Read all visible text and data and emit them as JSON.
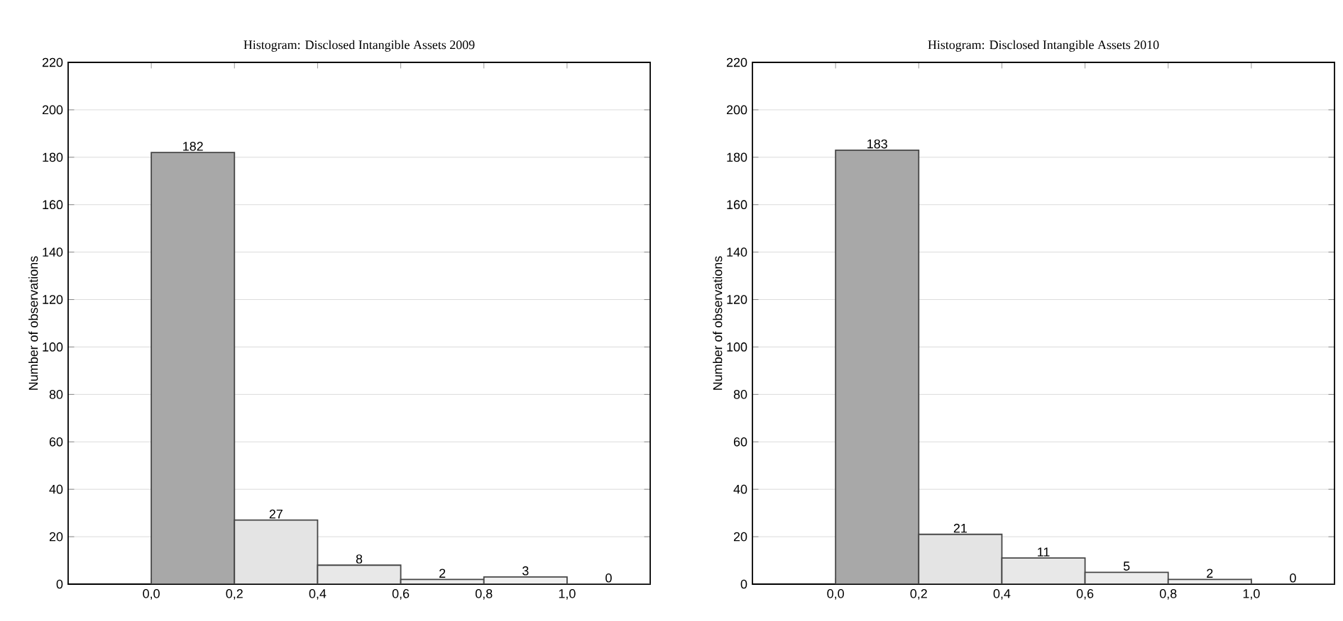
{
  "chart_data": [
    {
      "type": "histogram",
      "title": "Histogram: Disclosed Intangible Assets  2009",
      "ylabel": "Number of observations",
      "bins": [
        0,
        0.2,
        0.4,
        0.6,
        0.8,
        1.0,
        1.2
      ],
      "values": [
        182,
        27,
        8,
        2,
        3,
        0
      ],
      "colors": [
        "#a8a8a8",
        "#e4e4e4",
        "#e8e8e8",
        "#ececec",
        "#f0f0f0",
        "#f0f0f0"
      ],
      "data_labels": true,
      "grid": "y",
      "xlim": [
        -0.2,
        1.2
      ],
      "ylim": [
        0,
        220
      ],
      "xticks": [
        {
          "value": 0,
          "label": "0,0"
        },
        {
          "value": 0.2,
          "label": "0,2"
        },
        {
          "value": 0.4,
          "label": "0,4"
        },
        {
          "value": 0.6,
          "label": "0,6"
        },
        {
          "value": 0.8,
          "label": "0,8"
        },
        {
          "value": 1.0,
          "label": "1,0"
        }
      ],
      "yticks": [
        0,
        20,
        40,
        60,
        80,
        100,
        120,
        140,
        160,
        180,
        200,
        220
      ]
    },
    {
      "type": "histogram",
      "title": "Histogram: Disclosed Intangible Assets 2010",
      "ylabel": "Number of observations",
      "bins": [
        0,
        0.2,
        0.4,
        0.6,
        0.8,
        1.0,
        1.2
      ],
      "values": [
        183,
        21,
        11,
        5,
        2,
        0
      ],
      "colors": [
        "#a8a8a8",
        "#e4e4e4",
        "#e8e8e8",
        "#ececec",
        "#f0f0f0",
        "#f0f0f0"
      ],
      "data_labels": true,
      "grid": "y",
      "xlim": [
        -0.2,
        1.2
      ],
      "ylim": [
        0,
        220
      ],
      "xticks": [
        {
          "value": 0,
          "label": "0,0"
        },
        {
          "value": 0.2,
          "label": "0,2"
        },
        {
          "value": 0.4,
          "label": "0,4"
        },
        {
          "value": 0.6,
          "label": "0,6"
        },
        {
          "value": 0.8,
          "label": "0,8"
        },
        {
          "value": 1.0,
          "label": "1,0"
        }
      ],
      "yticks": [
        0,
        20,
        40,
        60,
        80,
        100,
        120,
        140,
        160,
        180,
        200,
        220
      ]
    }
  ]
}
